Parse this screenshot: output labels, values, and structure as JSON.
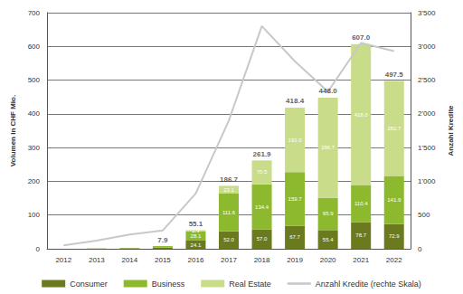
{
  "chart_data": {
    "type": "bar",
    "stacked": true,
    "grid": true,
    "legend": "bottom",
    "data_labels": true,
    "categories": [
      "2012",
      "2013",
      "2014",
      "2015",
      "2016",
      "2017",
      "2018",
      "2019",
      "2020",
      "2021",
      "2022"
    ],
    "ylabel": "Volumen in CHF Mio.",
    "y2label": "Anzahl Kredite",
    "ylim": [
      0,
      700
    ],
    "yticks": [
      0,
      100,
      200,
      300,
      400,
      500,
      600,
      700
    ],
    "y2lim": [
      0,
      3500
    ],
    "y2ticks": [
      0,
      500,
      {
        "value": 1000,
        "label": "1'000"
      },
      {
        "value": 1500,
        "label": "1'500"
      },
      {
        "value": 2000,
        "label": "2'000"
      },
      {
        "value": 2500,
        "label": "2'500"
      },
      {
        "value": 3000,
        "label": "3'000"
      },
      {
        "value": 3500,
        "label": "3'500"
      }
    ],
    "totals": [
      null,
      null,
      null,
      7.9,
      55.1,
      186.7,
      261.9,
      418.4,
      448.0,
      607.0,
      497.5
    ],
    "total_labels": [
      null,
      null,
      null,
      "7.9",
      "55.1",
      "186.7",
      "261.9",
      "418.4",
      "448.0",
      "607.0",
      "497.5"
    ],
    "series": [
      {
        "name": "Consumer",
        "type": "bar",
        "color": "#6b7a1f",
        "values": [
          0.2,
          0.5,
          1.5,
          3.5,
          24.1,
          52.0,
          57.0,
          67.7,
          55.4,
          78.7,
          72.9
        ],
        "value_labels": [
          null,
          null,
          null,
          null,
          "24.1",
          "52.0",
          "57.0",
          "67.7",
          "55.4",
          "78.7",
          "72.9"
        ]
      },
      {
        "name": "Business",
        "type": "bar",
        "color": "#8db92e",
        "values": [
          0.1,
          0.3,
          1.0,
          4.4,
          28.1,
          111.6,
          134.4,
          159.7,
          95.9,
          110.4,
          141.9
        ],
        "value_labels": [
          null,
          null,
          null,
          null,
          "28.1",
          "111.6",
          "134.4",
          "159.7",
          "95.9",
          "110.4",
          "141.9"
        ]
      },
      {
        "name": "Real Estate",
        "type": "bar",
        "color": "#c9dc8a",
        "values": [
          0,
          0,
          0,
          0,
          2.9,
          23.1,
          70.5,
          191.0,
          296.7,
          418.0,
          282.7
        ],
        "value_labels": [
          null,
          null,
          null,
          null,
          "2.9",
          "23.1",
          "70.5",
          "191.0",
          "296.7",
          "418.0",
          "282.7"
        ]
      },
      {
        "name": "Anzahl Kredite (rechte Skala)",
        "type": "line",
        "axis": "y2",
        "color": "#c8c8c8",
        "line_style": "solid",
        "values": [
          50,
          120,
          210,
          270,
          820,
          1900,
          3300,
          2780,
          2330,
          3050,
          2930
        ]
      }
    ]
  }
}
